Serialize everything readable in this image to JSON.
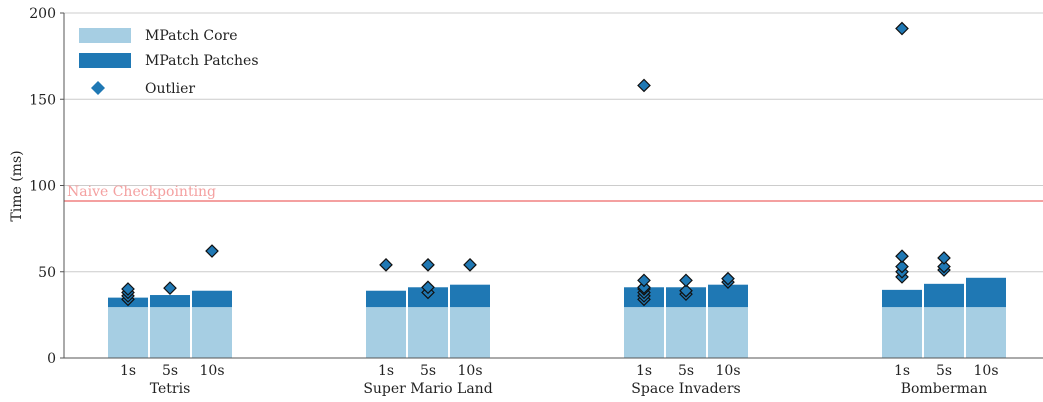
{
  "chart_data": {
    "type": "bar",
    "stacked": true,
    "ylabel": "Time (ms)",
    "ylim": [
      0,
      200
    ],
    "yticks": [
      0,
      50,
      100,
      150,
      200
    ],
    "grid": "horizontal",
    "legend_position": "top-left",
    "groups": [
      "Tetris",
      "Super Mario Land",
      "Space Invaders",
      "Bomberman"
    ],
    "sub_categories": [
      "1s",
      "5s",
      "10s"
    ],
    "series": [
      {
        "name": "MPatch Core",
        "color": "#a6cee3",
        "values": [
          [
            29.5,
            29.5,
            29.5
          ],
          [
            29.5,
            29.5,
            29.5
          ],
          [
            29.5,
            29.5,
            29.5
          ],
          [
            29.5,
            29.5,
            29.5
          ]
        ]
      },
      {
        "name": "MPatch Patches",
        "color": "#1f78b4",
        "values": [
          [
            5.5,
            7,
            9.5
          ],
          [
            9.5,
            11.5,
            13
          ],
          [
            11.5,
            11.5,
            13
          ],
          [
            10,
            13.5,
            17
          ]
        ]
      }
    ],
    "outliers": {
      "name": "Outlier",
      "color": "#1f78b4",
      "marker": "diamond",
      "points": [
        [
          [
            34,
            36,
            38,
            40
          ],
          [
            40.5
          ],
          [
            62
          ]
        ],
        [
          [
            54
          ],
          [
            38,
            41,
            54
          ],
          [
            54
          ]
        ],
        [
          [
            34,
            36,
            38,
            40,
            41,
            45,
            158
          ],
          [
            37,
            39,
            45
          ],
          [
            44,
            46
          ]
        ],
        [
          [
            47,
            50,
            53,
            59,
            191
          ],
          [
            51,
            53,
            58
          ],
          []
        ]
      ]
    },
    "reference_line": {
      "label": "Naive Checkpointing",
      "value": 91,
      "color": "#f4a0a0"
    }
  },
  "legend": {
    "core_label": "MPatch Core",
    "patches_label": "MPatch Patches",
    "outlier_label": "Outlier"
  }
}
